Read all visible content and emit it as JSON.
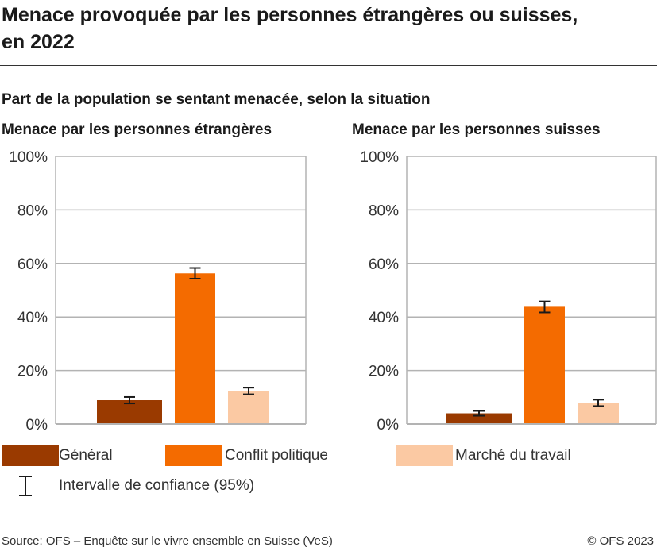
{
  "title": "Menace provoquée par les personnes étrangères ou suisses, en 2022",
  "subtitle": "Part de la population se sentant menacée, selon la situation",
  "colors": {
    "general": "#9a3a00",
    "conflit": "#f46b00",
    "marche": "#fbc9a3",
    "errorbar": "#1a1a1a",
    "grid": "#b3b3b3"
  },
  "chart_data": [
    {
      "type": "bar",
      "title": "Menace par les personnes étrangères",
      "categories": [
        "Général",
        "Conflit politique",
        "Marché du travail"
      ],
      "values": [
        8.9,
        56.3,
        12.4
      ],
      "ci_95": [
        [
          7.7,
          10.1
        ],
        [
          54.3,
          58.3
        ],
        [
          11.1,
          13.6
        ]
      ],
      "ylim": [
        0,
        100
      ],
      "yticks": [
        "0%",
        "20%",
        "40%",
        "60%",
        "80%",
        "100%"
      ],
      "grid": true
    },
    {
      "type": "bar",
      "title": "Menace par les personnes suisses",
      "categories": [
        "Général",
        "Conflit politique",
        "Marché du travail"
      ],
      "values": [
        4.0,
        43.8,
        8.0
      ],
      "ci_95": [
        [
          3.1,
          4.9
        ],
        [
          41.7,
          45.8
        ],
        [
          6.7,
          9.1
        ]
      ],
      "ylim": [
        0,
        100
      ],
      "yticks": [
        "0%",
        "20%",
        "40%",
        "60%",
        "80%",
        "100%"
      ],
      "grid": true
    }
  ],
  "legend": {
    "items": [
      "Général",
      "Conflit politique",
      "Marché du travail"
    ],
    "ci_label": "Intervalle de confiance (95%)",
    "placement": "bottom"
  },
  "footer": {
    "source": "Source: OFS – Enquête sur le vivre ensemble en Suisse (VeS)",
    "copyright": "© OFS 2023"
  }
}
